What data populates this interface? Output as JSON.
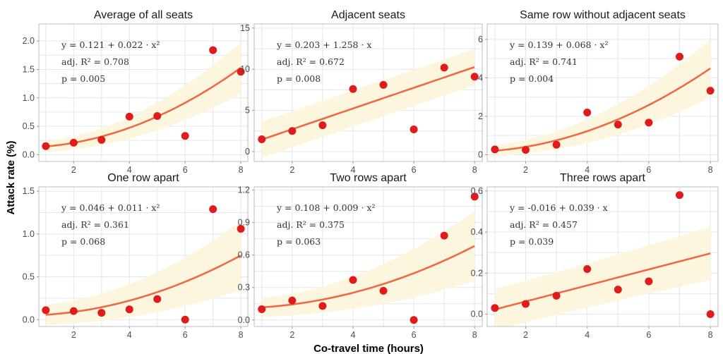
{
  "xlabel": "Co-travel time (hours)",
  "ylabel": "Attack rate (%)",
  "colors": {
    "point": "#e01b1b",
    "fit": "#ee6a47",
    "band": "#fdf5dc",
    "grid": "#e6e6e6"
  },
  "chart_data": [
    {
      "type": "scatter",
      "title": "Average of all seats",
      "x": [
        1,
        2,
        3,
        4,
        5,
        6,
        7,
        8
      ],
      "y": [
        0.15,
        0.21,
        0.26,
        0.67,
        0.68,
        0.33,
        1.84,
        1.46
      ],
      "fit": {
        "model": "quadratic",
        "a": 0.121,
        "b": 0.022
      },
      "annotations": [
        "y = 0.121 + 0.022 · x²",
        "adj. R² = 0.708",
        "p = 0.005"
      ],
      "xticks": [
        "2",
        "4",
        "6",
        "8"
      ],
      "yticks": [
        "0.0",
        "0.5",
        "1.0",
        "1.5",
        "2.0"
      ],
      "xlim": [
        0.75,
        8.25
      ],
      "ylim": [
        -0.12,
        2.3
      ],
      "ytick_values": [
        0,
        0.5,
        1.0,
        1.5,
        2.0
      ],
      "band_halfwidth": [
        0.1,
        0.45
      ]
    },
    {
      "type": "scatter",
      "title": "Adjacent seats",
      "x": [
        1,
        2,
        3,
        4,
        5,
        6,
        7,
        8
      ],
      "y": [
        1.5,
        2.5,
        3.2,
        7.6,
        8.1,
        2.7,
        10.2,
        9.1
      ],
      "fit": {
        "model": "linear",
        "a": 0.203,
        "b": 1.258
      },
      "annotations": [
        "y = 0.203 + 1.258 · x",
        "adj. R² = 0.672",
        "p = 0.008"
      ],
      "xticks": [
        "2",
        "4",
        "6",
        "8"
      ],
      "yticks": [
        "0",
        "5",
        "10",
        "15"
      ],
      "xlim": [
        0.75,
        8.25
      ],
      "ylim": [
        -1.2,
        15.5
      ],
      "ytick_values": [
        0,
        5,
        10,
        15
      ],
      "band_halfwidth": [
        2.2,
        2.2
      ]
    },
    {
      "type": "scatter",
      "title": "Same row without adjacent seats",
      "x": [
        1,
        2,
        3,
        4,
        5,
        6,
        7,
        8
      ],
      "y": [
        0.28,
        0.25,
        0.52,
        2.2,
        1.57,
        1.67,
        5.1,
        3.33
      ],
      "fit": {
        "model": "quadratic",
        "a": 0.139,
        "b": 0.068
      },
      "annotations": [
        "y = 0.139 + 0.068 · x²",
        "adj. R² = 0.741",
        "p = 0.004"
      ],
      "xticks": [
        "2",
        "4",
        "6",
        "8"
      ],
      "yticks": [
        "0",
        "2",
        "4",
        "6"
      ],
      "xlim": [
        0.75,
        8.25
      ],
      "ylim": [
        -0.35,
        6.8
      ],
      "ytick_values": [
        0,
        2,
        4,
        6
      ],
      "band_halfwidth": [
        0.3,
        1.5
      ]
    },
    {
      "type": "scatter",
      "title": "One row apart",
      "x": [
        1,
        2,
        3,
        4,
        5,
        6,
        7,
        8
      ],
      "y": [
        0.11,
        0.1,
        0.08,
        0.12,
        0.24,
        0.0,
        1.29,
        1.06
      ],
      "fit": {
        "model": "quadratic",
        "a": 0.046,
        "b": 0.011
      },
      "annotations": [
        "y = 0.046 + 0.011 · x²",
        "adj. R² = 0.361",
        "p = 0.068"
      ],
      "xticks": [
        "2",
        "4",
        "6",
        "8"
      ],
      "yticks": [
        "0.0",
        "0.5",
        "1.0",
        "1.5"
      ],
      "xlim": [
        0.75,
        8.25
      ],
      "ylim": [
        -0.08,
        1.55
      ],
      "ytick_values": [
        0,
        0.5,
        1.0,
        1.5
      ],
      "band_halfwidth": [
        0.12,
        0.4
      ]
    },
    {
      "type": "scatter",
      "title": "Two rows apart",
      "x": [
        1,
        2,
        3,
        4,
        5,
        6,
        7,
        8
      ],
      "y": [
        0.1,
        0.18,
        0.13,
        0.37,
        0.27,
        0.0,
        0.78,
        1.14
      ],
      "fit": {
        "model": "quadratic",
        "a": 0.108,
        "b": 0.009
      },
      "annotations": [
        "y = 0.108 + 0.009 · x²",
        "adj. R² = 0.375",
        "p = 0.063"
      ],
      "xticks": [
        "2",
        "4",
        "6",
        "8"
      ],
      "yticks": [
        "0.0",
        "0.3",
        "0.6",
        "0.9",
        "1.2"
      ],
      "xlim": [
        0.75,
        8.25
      ],
      "ylim": [
        -0.06,
        1.23
      ],
      "ytick_values": [
        0,
        0.3,
        0.6,
        0.9,
        1.2
      ],
      "band_halfwidth": [
        0.09,
        0.32
      ]
    },
    {
      "type": "scatter",
      "title": "Three rows apart",
      "x": [
        1,
        2,
        3,
        4,
        5,
        6,
        7,
        8
      ],
      "y": [
        0.03,
        0.05,
        0.09,
        0.22,
        0.12,
        0.16,
        0.58,
        0.0
      ],
      "fit": {
        "model": "linear",
        "a": -0.016,
        "b": 0.039
      },
      "annotations": [
        "y = -0.016 + 0.039 · x",
        "adj. R² = 0.457",
        "p = 0.039"
      ],
      "xticks": [
        "2",
        "4",
        "6",
        "8"
      ],
      "yticks": [
        "0.0",
        "0.2",
        "0.4",
        "0.6"
      ],
      "xlim": [
        0.75,
        8.25
      ],
      "ylim": [
        -0.06,
        0.62
      ],
      "ytick_values": [
        0,
        0.2,
        0.4,
        0.6
      ],
      "band_halfwidth": [
        0.1,
        0.13
      ]
    }
  ]
}
